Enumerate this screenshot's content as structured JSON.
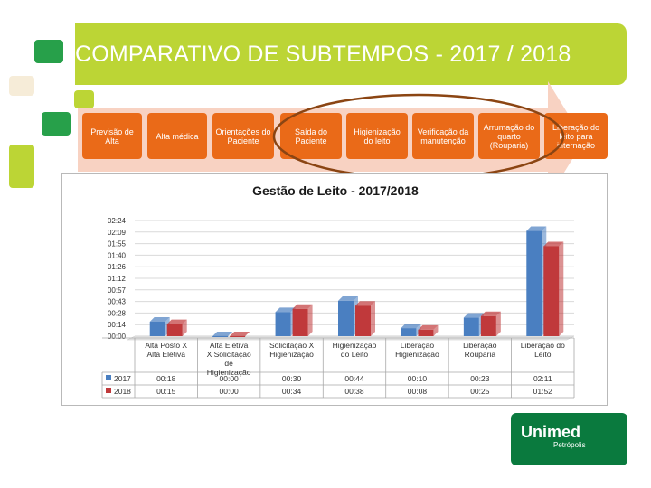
{
  "slide": {
    "title": "COMPARATIVO DE SUBTEMPOS - 2017 / 2018",
    "colors": {
      "green": "#bcd535",
      "dark_green": "#27a04a",
      "orange": "#ea6a18",
      "oval": "#8b4513"
    }
  },
  "process": {
    "steps": [
      "Previsão de Alta",
      "Alta médica",
      "Orientações do Paciente",
      "Saída do Paciente",
      "Higienização do leito",
      "Verificação da manutenção",
      "Arrumação do quarto (Rouparia)",
      "Liberação do leito para internação"
    ]
  },
  "logo": {
    "name": "Unimed",
    "city": "Petrópolis"
  },
  "chart_data": {
    "type": "bar",
    "title": "Gestão de Leito - 2017/2018",
    "categories": [
      "Alta Posto X Alta Eletiva",
      "Alta Eletiva X Solicitação de Higienização",
      "Solicitação X Higienização",
      "Higienização do Leito",
      "Liberação Higienização",
      "Liberação Rouparia",
      "Liberação do Leito"
    ],
    "y_tick_labels": [
      "00:00",
      "00:14",
      "00:28",
      "00:43",
      "00:57",
      "01:12",
      "01:26",
      "01:40",
      "01:55",
      "02:09",
      "02:24"
    ],
    "ylim_minutes": [
      0,
      144
    ],
    "series": [
      {
        "name": "2017",
        "color": "#4a7fc1",
        "labels": [
          "00:18",
          "00:00",
          "00:30",
          "00:44",
          "00:10",
          "00:23",
          "02:11"
        ],
        "values_minutes": [
          18,
          0,
          30,
          44,
          10,
          23,
          131
        ]
      },
      {
        "name": "2018",
        "color": "#c0393b",
        "labels": [
          "00:15",
          "00:00",
          "00:34",
          "00:38",
          "00:08",
          "00:25",
          "01:52"
        ],
        "values_minutes": [
          15,
          0,
          34,
          38,
          8,
          25,
          112
        ]
      }
    ],
    "legend_placement": "data-table",
    "grid": true
  }
}
